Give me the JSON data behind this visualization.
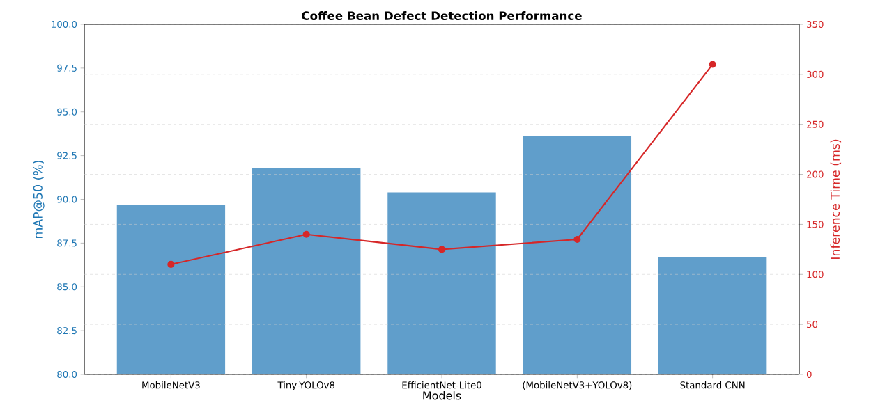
{
  "chart_data": {
    "type": "bar",
    "title": "Coffee Bean Defect Detection Performance",
    "xlabel": "Models",
    "ylabel": "mAP@50 (%)",
    "y2label": "Inference Time (ms)",
    "categories": [
      "MobileNetV3",
      "Tiny-YOLOv8",
      "EfficientNet-Lite0",
      "(MobileNetV3+YOLOv8)",
      "Standard CNN"
    ],
    "series": [
      {
        "color": "#609ecb",
        "values": [
          89.7,
          91.8,
          90.4,
          93.6,
          86.7
        ]
      },
      {
        "type": "line",
        "color": "#d62728",
        "axis": "y2",
        "values": [
          110,
          140,
          125,
          135,
          310
        ]
      }
    ],
    "ylim": [
      80,
      100
    ],
    "yticks": [
      {
        "value": 80,
        "label": "80.0"
      },
      {
        "value": 82.5,
        "label": "82.5"
      },
      {
        "value": 85,
        "label": "85.0"
      },
      {
        "value": 87.5,
        "label": "87.5"
      },
      {
        "value": 90,
        "label": "90.0"
      },
      {
        "value": 92.5,
        "label": "92.5"
      },
      {
        "value": 95,
        "label": "95.0"
      },
      {
        "value": 97.5,
        "label": "97.5"
      },
      {
        "value": 100,
        "label": "100.0"
      }
    ],
    "y2lim": [
      0,
      350
    ],
    "y2ticks": [
      0,
      50,
      100,
      150,
      200,
      250,
      300,
      350
    ],
    "grid": "y2",
    "marker": "circle",
    "legend": false
  }
}
